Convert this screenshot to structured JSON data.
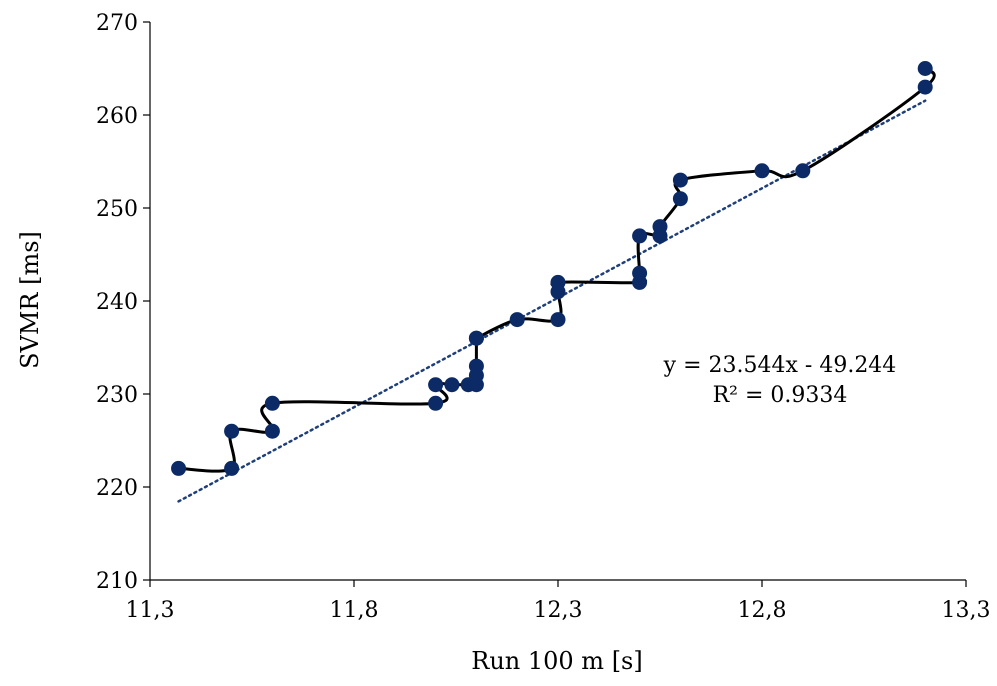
{
  "chart_data": {
    "type": "scatter",
    "title": "",
    "xlabel": "Run 100 m [s]",
    "ylabel": "SVMR [ms]",
    "xlim": [
      11.3,
      13.3
    ],
    "ylim": [
      210,
      270
    ],
    "x_ticks": [
      11.3,
      11.8,
      12.3,
      12.8,
      13.3
    ],
    "x_tick_labels": [
      "11,3",
      "11,8",
      "12,3",
      "12,8",
      "13,3"
    ],
    "y_ticks": [
      210,
      220,
      230,
      240,
      250,
      260,
      270
    ],
    "y_tick_labels": [
      "210",
      "220",
      "230",
      "240",
      "250",
      "260",
      "270"
    ],
    "grid": false,
    "colors": {
      "marker": "#0b2a66",
      "line": "#000000",
      "trendline": "#1f3f7a",
      "axis": "#000000"
    },
    "series": [
      {
        "x": [
          11.37,
          11.5,
          11.5,
          11.6,
          11.6,
          12.0,
          12.0,
          12.04,
          12.08,
          12.1,
          12.1,
          12.1,
          12.1,
          12.1,
          12.2,
          12.3,
          12.3,
          12.3,
          12.5,
          12.5,
          12.5,
          12.55,
          12.55,
          12.6,
          12.6,
          12.8,
          12.9,
          13.2,
          13.2
        ],
        "y": [
          222,
          222,
          226,
          226,
          229,
          229,
          231,
          231,
          231,
          231,
          232,
          233,
          236,
          236,
          238,
          238,
          241,
          242,
          242,
          243,
          247,
          247,
          248,
          251,
          253,
          254,
          254,
          263,
          265
        ],
        "marker": "circle",
        "connected": true
      }
    ],
    "trendline": {
      "type": "linear",
      "slope": 23.544,
      "intercept": -49.244,
      "x_range": [
        11.37,
        13.2
      ],
      "style": "dotted"
    },
    "annotations": [
      "y = 23.544x - 49.244",
      "R² = 0.9334"
    ]
  }
}
